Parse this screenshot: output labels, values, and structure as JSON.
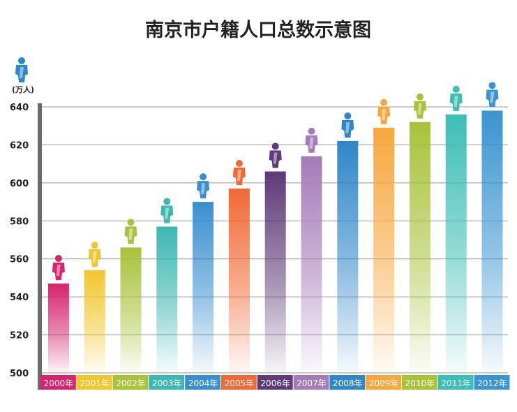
{
  "chart_data": {
    "type": "bar",
    "title": "南京市户籍人口总数示意图",
    "unit_label": "(万人)",
    "ylabel": "(万人)",
    "xlabel": "",
    "ylim": [
      500,
      640
    ],
    "yticks": [
      500,
      520,
      540,
      560,
      580,
      600,
      620,
      640
    ],
    "categories": [
      "2000年",
      "2001年",
      "2002年",
      "2003年",
      "2004年",
      "2005年",
      "2006年",
      "2007年",
      "2008年",
      "2009年",
      "2010年",
      "2011年",
      "2012年"
    ],
    "values": [
      547,
      554,
      566,
      577,
      590,
      597,
      606,
      614,
      622,
      629,
      632,
      636,
      638
    ],
    "colors": [
      "#d6246e",
      "#f2c62f",
      "#a8c23a",
      "#3cb7b1",
      "#3b8fd0",
      "#f06a35",
      "#5e3a78",
      "#a57bb8",
      "#2f86c9",
      "#f7a73d",
      "#a8c23a",
      "#3cbeb5",
      "#3a94d2"
    ],
    "icon_colors": [
      "#d6246e",
      "#f2c62f",
      "#a8c23a",
      "#3cb7b1",
      "#3b8fd0",
      "#f06a35",
      "#5e3a78",
      "#a57bb8",
      "#2f86c9",
      "#f7a73d",
      "#a8c23a",
      "#3cbeb5",
      "#3a94d2"
    ],
    "legend_icon_color": "#2f86c9"
  }
}
